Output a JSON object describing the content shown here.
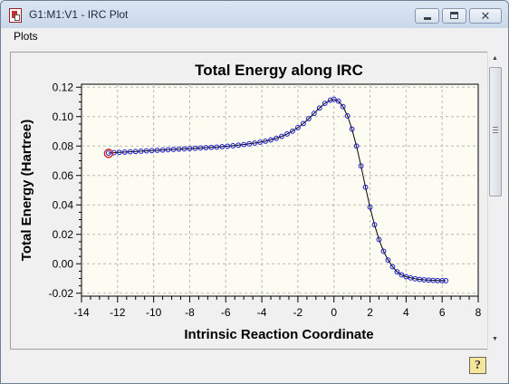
{
  "window": {
    "title": "G1:M1:V1 - IRC Plot",
    "icon": "gaussview-document-icon",
    "buttons": [
      "minimize",
      "maximize",
      "close"
    ]
  },
  "menubar": {
    "items": [
      {
        "label": "Plots"
      }
    ]
  },
  "help_button": {
    "label": "?",
    "icon": "help-icon"
  },
  "colors": {
    "plot_background": "#fcfcf2",
    "marker": "#1a1ac8",
    "line": "#000000",
    "highlight_marker": "#d02020"
  },
  "chart_data": {
    "type": "scatter",
    "title": "Total Energy along IRC",
    "xlabel": "Intrinsic Reaction Coordinate",
    "ylabel": "Total Energy (Hartree)",
    "xlim": [
      -14,
      8
    ],
    "ylim": [
      -0.022,
      0.122
    ],
    "xticks": [
      -14,
      -12,
      -10,
      -8,
      -6,
      -4,
      -2,
      0,
      2,
      4,
      6,
      8
    ],
    "yticks": [
      -0.02,
      0.0,
      0.02,
      0.04,
      0.06,
      0.08,
      0.1,
      0.12
    ],
    "xtick_labels": [
      "-14",
      "-12",
      "-10",
      "-8",
      "-6",
      "-4",
      "-2",
      "0",
      "2",
      "4",
      "6",
      "8"
    ],
    "ytick_labels": [
      "-0.02",
      "0.00",
      "0.02",
      "0.04",
      "0.06",
      "0.08",
      "0.10",
      "0.12"
    ],
    "grid": true,
    "highlighted_point": [
      -12.5,
      0.075
    ],
    "series": [
      {
        "x": [
          -12.5,
          -12.2,
          -11.9,
          -11.6,
          -11.3,
          -11.0,
          -10.7,
          -10.4,
          -10.1,
          -9.8,
          -9.5,
          -9.2,
          -8.9,
          -8.6,
          -8.3,
          -8.0,
          -7.7,
          -7.4,
          -7.1,
          -6.8,
          -6.5,
          -6.2,
          -5.9,
          -5.6,
          -5.3,
          -5.0,
          -4.7,
          -4.4,
          -4.1,
          -3.8,
          -3.5,
          -3.2,
          -2.9,
          -2.6,
          -2.3,
          -2.0,
          -1.7,
          -1.4,
          -1.1,
          -0.8,
          -0.5,
          -0.2,
          0.0,
          0.25,
          0.5,
          0.75,
          1.0,
          1.25,
          1.5,
          1.75,
          2.0,
          2.25,
          2.5,
          2.75,
          3.0,
          3.25,
          3.5,
          3.75,
          4.0,
          4.25,
          4.5,
          4.75,
          5.0,
          5.25,
          5.5,
          5.75,
          6.0,
          6.2
        ],
        "y": [
          0.0752,
          0.0755,
          0.0757,
          0.0759,
          0.0761,
          0.0763,
          0.0765,
          0.0767,
          0.0769,
          0.0771,
          0.0773,
          0.0775,
          0.0777,
          0.0779,
          0.0781,
          0.0783,
          0.0785,
          0.0787,
          0.0789,
          0.0791,
          0.0793,
          0.0796,
          0.0799,
          0.0802,
          0.0806,
          0.081,
          0.0815,
          0.082,
          0.0826,
          0.0833,
          0.0842,
          0.0853,
          0.0866,
          0.0882,
          0.0901,
          0.0925,
          0.0953,
          0.0986,
          0.1022,
          0.1058,
          0.109,
          0.1112,
          0.1118,
          0.1105,
          0.1068,
          0.1005,
          0.0915,
          0.08,
          0.0665,
          0.052,
          0.0385,
          0.0265,
          0.0165,
          0.0085,
          0.0025,
          -0.002,
          -0.0055,
          -0.0075,
          -0.0088,
          -0.0096,
          -0.0102,
          -0.0106,
          -0.0109,
          -0.0111,
          -0.0113,
          -0.0114,
          -0.0115,
          -0.0115
        ]
      }
    ]
  }
}
